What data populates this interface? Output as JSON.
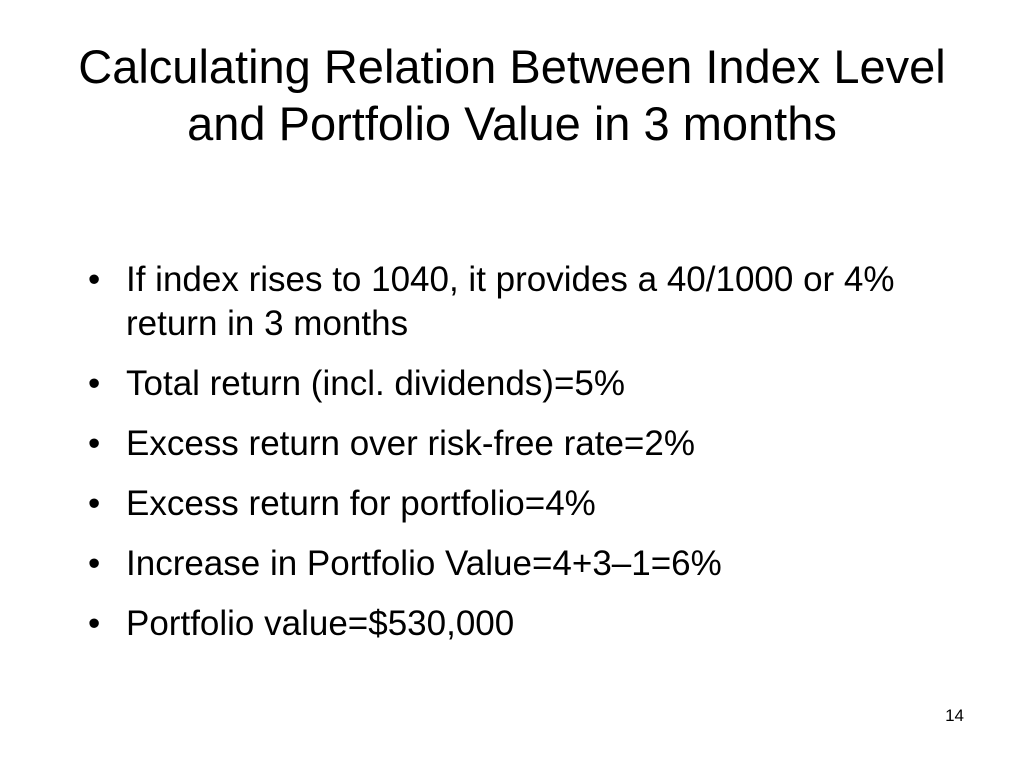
{
  "slide": {
    "title": "Calculating Relation Between Index Level and Portfolio Value in 3 months",
    "bullet_marker": "•",
    "bullets": [
      "If index rises to 1040, it provides a 40/1000 or 4% return in 3 months",
      "Total return (incl. dividends)=5%",
      "Excess return over risk-free rate=2%",
      "Excess return for portfolio=4%",
      "Increase in Portfolio Value=4+3–1=6%",
      "Portfolio value=$530,000"
    ],
    "page_number": "14"
  }
}
